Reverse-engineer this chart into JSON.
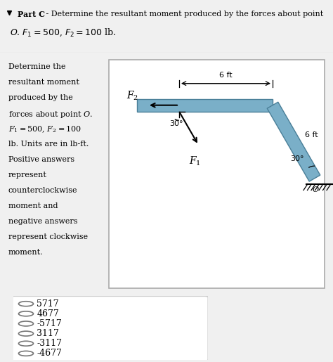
{
  "title_bold": "Part C",
  "title_rest": " - Determine the resultant moment produced by the forces about point",
  "title_line2": "$O$. $F_1 = 500$, $F_2 = 100$ lb.",
  "left_text_lines": [
    "Determine the",
    "resultant moment",
    "produced by the",
    "forces about point $O$.",
    "$F_1 = 500$, $F_2 = 100$",
    "lb. Units are in lb-ft.",
    "Positive answers",
    "represent",
    "counterclockwise",
    "moment and",
    "negative answers",
    "represent clockwise",
    "moment."
  ],
  "choices": [
    "5717",
    "4677",
    "-5717",
    "3117",
    "-3117",
    "-4677"
  ],
  "page_bg": "#f0f0f0",
  "header_bg": "#e0e0e0",
  "diagram_bg": "#d8d8d8",
  "beam_fill": "#7aafc8",
  "beam_edge": "#4a7f98",
  "choices_bg": "#ffffff",
  "choices_border": "#cccccc"
}
